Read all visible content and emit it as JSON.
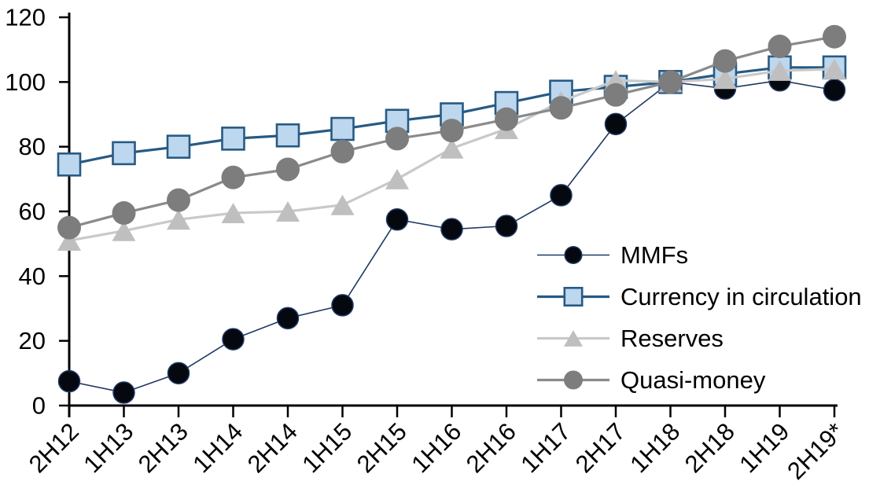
{
  "chart_data": {
    "type": "line",
    "title": "",
    "categories": [
      "2H12",
      "1H13",
      "2H13",
      "1H14",
      "2H14",
      "1H15",
      "2H15",
      "1H16",
      "2H16",
      "1H17",
      "2H17",
      "1H18",
      "2H18",
      "1H19",
      "2H19*"
    ],
    "series": [
      {
        "name": "MMFs",
        "marker": "circle",
        "marker_size": 27,
        "marker_color": "#06080f",
        "marker_stroke": "#1F3864",
        "marker_stroke_width": 1.5,
        "line_color": "#1F3864",
        "line_width": 1.6,
        "values": [
          7.5,
          4,
          10,
          20.5,
          27,
          31,
          57.5,
          54.5,
          55.5,
          65,
          87,
          100,
          98,
          100.5,
          97.5
        ]
      },
      {
        "name": "Currency in circulation",
        "marker": "square",
        "marker_size": 28,
        "marker_color": "#BDD7EE",
        "marker_stroke": "#275A84",
        "marker_stroke_width": 2.6,
        "line_color": "#275A84",
        "line_width": 3.2,
        "values": [
          74.5,
          78,
          80,
          82.5,
          83.5,
          85.5,
          88,
          90,
          93.5,
          97,
          98.5,
          100,
          102.5,
          104.5,
          104.5
        ]
      },
      {
        "name": "Reserves",
        "marker": "triangle",
        "marker_size": 30,
        "marker_color": "#BFBFBF",
        "marker_stroke": "#BFBFBF",
        "marker_stroke_width": 0,
        "line_color": "#C9C9C9",
        "line_width": 3.2,
        "values": [
          51,
          54,
          57.5,
          59.5,
          60,
          62,
          70,
          79.5,
          85.5,
          94,
          100.5,
          100,
          101,
          103.5,
          104
        ]
      },
      {
        "name": "Quasi-money",
        "marker": "circle",
        "marker_size": 30,
        "marker_color": "#7D7D7D",
        "marker_stroke": "#7D7D7D",
        "marker_stroke_width": 0,
        "line_color": "#8A8A8A",
        "line_width": 3.2,
        "values": [
          55,
          59.5,
          63.5,
          70.5,
          73,
          78.5,
          82.5,
          85,
          88.5,
          92,
          96,
          100,
          106.5,
          111,
          114
        ]
      }
    ],
    "xlabel": "",
    "ylabel": "",
    "ylim": [
      0,
      120
    ],
    "ytick_step": 20,
    "y_tick_labels": [
      "0",
      "20",
      "40",
      "60",
      "80",
      "100",
      "120"
    ],
    "grid": false,
    "legend_position": "center-right"
  }
}
